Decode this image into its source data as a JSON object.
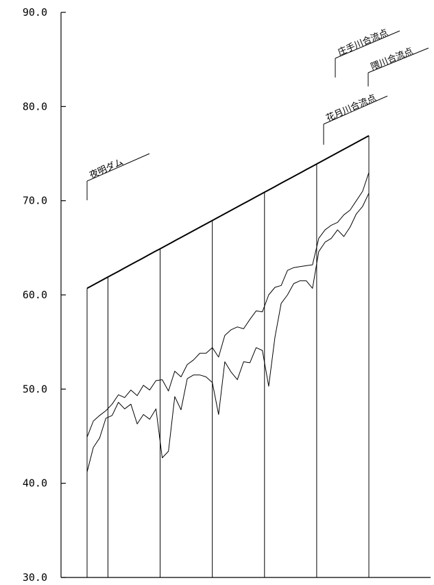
{
  "chart_data": {
    "type": "line",
    "title": "",
    "xlabel": "",
    "ylabel": "",
    "ylim": [
      30.0,
      90.0
    ],
    "yticks": [
      "90.0",
      "80.0",
      "70.0",
      "60.0",
      "50.0",
      "40.0",
      "30.0"
    ],
    "grid": false,
    "legend": "none",
    "x": [
      0,
      1,
      2,
      3,
      4,
      5,
      6,
      7,
      8,
      9,
      10,
      11,
      12,
      13,
      14,
      15,
      16,
      17,
      18,
      19,
      20,
      21,
      22,
      23,
      24,
      25,
      26,
      27,
      28,
      29,
      30,
      31,
      32,
      33,
      34,
      35,
      36,
      37,
      38,
      39,
      40,
      41,
      42,
      43,
      44,
      45,
      46,
      47,
      48,
      49,
      50,
      51,
      52,
      53,
      54
    ],
    "series": [
      {
        "values": [
          60.7,
          61.0,
          61.3,
          61.6,
          61.9,
          62.2,
          62.5,
          62.8,
          63.1,
          63.4,
          63.7,
          64.0,
          64.3,
          64.6,
          64.9,
          65.2,
          65.5,
          65.8,
          66.1,
          66.4,
          66.7,
          67.0,
          67.3,
          67.6,
          67.9,
          68.2,
          68.5,
          68.8,
          69.1,
          69.4,
          69.7,
          70.0,
          70.3,
          70.6,
          70.9,
          71.2,
          71.5,
          71.8,
          72.1,
          72.4,
          72.7,
          73.0,
          73.3,
          73.6,
          73.9,
          74.2,
          74.5,
          74.8,
          75.1,
          75.4,
          75.7,
          76.0,
          76.3,
          76.6,
          76.9
        ]
      },
      {
        "values": [
          44.9,
          46.6,
          47.2,
          47.7,
          48.4,
          49.4,
          49.1,
          49.9,
          49.3,
          50.4,
          49.9,
          50.9,
          51.0,
          49.8,
          51.9,
          51.3,
          52.6,
          53.1,
          53.8,
          53.8,
          54.4,
          53.4,
          55.7,
          56.3,
          56.6,
          56.4,
          57.4,
          58.3,
          58.2,
          60.0,
          60.8,
          61.0,
          62.6,
          62.9,
          63.0,
          63.1,
          63.2,
          66.0,
          66.9,
          67.4,
          67.7,
          68.5,
          69.0,
          70.0,
          71.0,
          73.0,
          73.0,
          73.0,
          73.0,
          73.0,
          73.0,
          73.0,
          73.0,
          73.0,
          73.0
        ]
      },
      {
        "values": [
          41.2,
          43.8,
          44.8,
          46.9,
          47.2,
          48.6,
          47.9,
          48.4,
          46.3,
          47.3,
          46.8,
          47.9,
          42.7,
          43.4,
          49.2,
          47.8,
          51.1,
          51.5,
          51.5,
          51.3,
          50.7,
          47.3,
          52.9,
          51.8,
          51.0,
          52.9,
          52.8,
          54.4,
          54.1,
          50.3,
          55.5,
          59.1,
          60.0,
          61.2,
          61.5,
          61.5,
          60.7,
          64.6,
          65.6,
          66.0,
          66.9,
          66.2,
          67.2,
          68.6,
          69.4,
          70.8,
          70.8,
          70.8,
          70.8,
          70.8,
          70.8,
          70.8,
          70.8,
          70.8,
          70.8
        ]
      }
    ],
    "annotations": [
      {
        "label": "夜明ダム"
      },
      {
        "label": "花月川合流点"
      },
      {
        "label": "庄手川合流点"
      },
      {
        "label": "隈川合流点"
      }
    ]
  }
}
